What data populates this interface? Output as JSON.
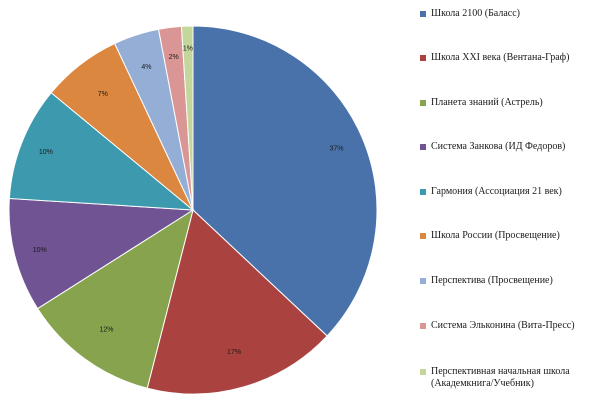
{
  "chart_data": {
    "type": "pie",
    "categories": [
      "Школа 2100 (Баласс)",
      "Школа XXI века (Вентана-Граф)",
      "Планета знаний (Астрель)",
      "Система Занкова (ИД Федоров)",
      "Гармония (Ассоциация 21 век)",
      "Школа России (Просвещение)",
      "Перспектива (Просвещение)",
      "Система Эльконина (Вита-Пресс)",
      "Перспективная начальная школа (Академкнига/Учебник)"
    ],
    "values": [
      37,
      17,
      12,
      10,
      10,
      7,
      4,
      2,
      1
    ],
    "value_labels": [
      "37%",
      "17%",
      "12%",
      "10%",
      "10%",
      "7%",
      "4%",
      "2%",
      "1%"
    ],
    "colors": [
      "#4a72aa",
      "#aa4340",
      "#87a34d",
      "#6f5393",
      "#3c99ae",
      "#dc8740",
      "#95aed6",
      "#d99694",
      "#c3d69b"
    ],
    "title": "",
    "legend_position": "right"
  }
}
